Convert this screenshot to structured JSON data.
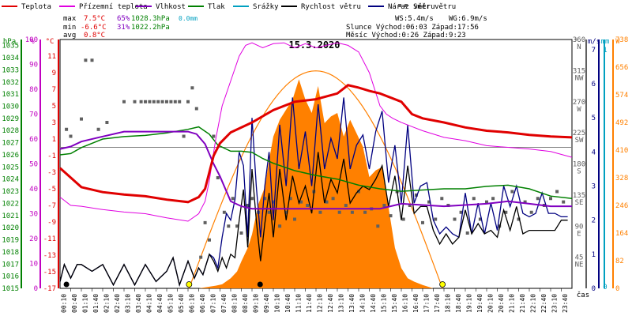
{
  "chart_data": {
    "type": "line",
    "title": "15.3.2020",
    "xlabel": "čas",
    "legend": [
      {
        "name": "Teplota",
        "color": "#e00000"
      },
      {
        "name": "Přízemní teplota",
        "color": "#e000e0"
      },
      {
        "name": "Vlhkost",
        "color": "#8000c0"
      },
      {
        "name": "Tlak",
        "color": "#008000"
      },
      {
        "name": "Srážky",
        "color": "#00a0c0"
      },
      {
        "name": "Rychlost větru",
        "color": "#000000"
      },
      {
        "name": "Náraz větru",
        "color": "#000080"
      },
      {
        "name": "Směr větru",
        "color": "#606060"
      }
    ],
    "stats": {
      "max": {
        "label": "max",
        "temp": "7.5°C",
        "hum": "65%",
        "press": "1028.3hPa",
        "rain": "0.0mm"
      },
      "min": {
        "label": "min",
        "temp": "-6.6°C",
        "hum": "31%",
        "press": "1022.2hPa"
      },
      "avg": {
        "label": "avg",
        "temp": "0.8°C"
      }
    },
    "info": {
      "ws": "WS:5.4m/s",
      "wg": "WG:6.9m/s",
      "sun": "Slunce Východ:06:03  Západ:17:56",
      "moon": "Měsíc  Východ:0:26  Západ:9:23"
    },
    "axes": {
      "hpa_unit": "hPa",
      "pct_unit": "%",
      "degc_unit": "°C",
      "deg_unit": "°",
      "ms_unit": "m/s",
      "mm_unit": "mm",
      "w_unit": "W",
      "hpa_ticks": [
        "1035",
        "1034",
        "1033",
        "1032",
        "1031",
        "1030",
        "1029",
        "1028",
        "1027",
        "1026",
        "1025",
        "1024",
        "1023",
        "1022",
        "1021",
        "1020",
        "1019",
        "1018",
        "1017",
        "1016",
        "1015"
      ],
      "pct_ticks": [
        "100",
        "90",
        "80",
        "70",
        "60",
        "50",
        "40",
        "30",
        "20",
        "10",
        "0"
      ],
      "degc_ticks": [
        "11",
        "9",
        "7",
        "5",
        "3",
        "1",
        "-1",
        "-3",
        "-5",
        "-7",
        "-9",
        "-11",
        "-13",
        "-15",
        "-17"
      ],
      "dir_ticks": [
        "360",
        "N",
        "315",
        "NW",
        "270",
        "W",
        "225",
        "SW",
        "180",
        "S",
        "135",
        "SE",
        "90",
        "E",
        "45",
        "NE",
        "0"
      ],
      "ms_ticks": [
        "7",
        "6",
        "5",
        "4",
        "3",
        "2",
        "1",
        "0"
      ],
      "mm_ticks": [
        "1",
        "0"
      ],
      "w_ticks": [
        "738",
        "656",
        "574",
        "492",
        "410",
        "328",
        "246",
        "164",
        "82",
        "0"
      ],
      "time_ticks": [
        "00:10",
        "00:40",
        "01:10",
        "01:40",
        "02:10",
        "02:40",
        "03:10",
        "03:40",
        "04:10",
        "04:40",
        "05:10",
        "05:40",
        "06:10",
        "06:40",
        "07:10",
        "07:40",
        "08:10",
        "08:40",
        "09:10",
        "09:40",
        "10:10",
        "10:40",
        "11:10",
        "11:40",
        "12:10",
        "12:40",
        "13:10",
        "13:40",
        "14:10",
        "14:40",
        "15:10",
        "15:40",
        "16:10",
        "16:40",
        "17:10",
        "17:40",
        "18:10",
        "18:40",
        "19:10",
        "19:40",
        "20:10",
        "20:40",
        "21:10",
        "21:40",
        "22:10",
        "22:40",
        "23:10",
        "23:40"
      ]
    },
    "ylim": {
      "temp_c": [
        -17,
        13
      ],
      "hum_pct": [
        0,
        100
      ],
      "press_hpa": [
        1015,
        1035.5
      ],
      "dir_deg": [
        0,
        360
      ],
      "wind_ms": [
        0,
        7.3
      ],
      "solar_w": [
        0,
        738
      ]
    },
    "series": {
      "temperature": {
        "name": "Teplota",
        "color": "#e00000",
        "hours": [
          0,
          1,
          2,
          3,
          4,
          5,
          6,
          6.5,
          6.8,
          7,
          7.2,
          7.5,
          8,
          9,
          10,
          11,
          12,
          13,
          13.5,
          14,
          14.5,
          15,
          16,
          16.5,
          17,
          18,
          19,
          20,
          21,
          22,
          23,
          24
        ],
        "values": [
          -2.5,
          -4.8,
          -5.4,
          -5.7,
          -5.9,
          -6.3,
          -6.6,
          -6.0,
          -5.0,
          -3.0,
          -1.0,
          0.5,
          1.8,
          3.0,
          4.5,
          5.5,
          5.8,
          6.5,
          7.5,
          7.2,
          6.8,
          6.5,
          5.5,
          4.0,
          3.5,
          3.0,
          2.4,
          2.0,
          1.8,
          1.5,
          1.3,
          1.2
        ]
      },
      "ground_temperature": {
        "name": "Přízemní teplota",
        "color": "#e000e0",
        "hours": [
          0,
          0.5,
          1,
          2,
          3,
          4,
          5,
          6,
          6.5,
          6.8,
          7,
          7.3,
          7.6,
          8,
          8.4,
          8.7,
          9,
          9.5,
          10,
          10.5,
          11,
          11.5,
          12,
          13,
          13.5,
          14,
          14.5,
          15,
          15.3,
          15.6,
          16,
          16.5,
          17,
          18,
          19,
          20,
          21,
          22,
          23,
          24
        ],
        "values": [
          -6.0,
          -7.0,
          -7.1,
          -7.5,
          -7.8,
          -8.0,
          -8.5,
          -8.9,
          -8.0,
          -6.5,
          -4.0,
          1.0,
          5.0,
          8.0,
          11.0,
          12.3,
          12.6,
          12.0,
          12.5,
          12.6,
          12.0,
          12.5,
          12.0,
          12.6,
          12.3,
          11.5,
          9.0,
          5.0,
          4.0,
          3.5,
          3.0,
          2.5,
          2.0,
          1.2,
          0.8,
          0.2,
          0.0,
          -0.2,
          -0.5,
          -1.2
        ]
      },
      "humidity": {
        "name": "Vlhkost",
        "color": "#8000c0",
        "hours": [
          0,
          0.5,
          1,
          2,
          3,
          4,
          5,
          6,
          6.4,
          6.8,
          7.2,
          7.5,
          8,
          8.5,
          9,
          10,
          12,
          14,
          15,
          16,
          18,
          20,
          21,
          22,
          23,
          24
        ],
        "values": [
          56,
          57,
          59,
          61,
          63,
          63,
          63,
          63,
          62,
          58,
          50,
          45,
          35,
          33,
          32,
          32,
          32,
          32,
          32,
          34,
          33,
          34,
          35,
          34,
          33,
          33
        ]
      },
      "pressure": {
        "name": "Tlak",
        "color": "#008000",
        "hours": [
          0,
          0.5,
          1,
          2,
          3,
          4,
          5,
          6,
          6.5,
          7,
          7.4,
          8,
          8.5,
          9,
          9.5,
          10,
          11,
          12,
          13,
          14,
          15,
          16,
          17,
          18,
          19,
          20,
          21,
          22,
          23,
          24
        ],
        "values": [
          1026.0,
          1026.1,
          1026.6,
          1027.3,
          1027.5,
          1027.6,
          1027.8,
          1028.1,
          1028.3,
          1027.7,
          1026.8,
          1026.3,
          1026.3,
          1026.2,
          1025.7,
          1025.3,
          1024.7,
          1024.3,
          1024.0,
          1023.5,
          1023.2,
          1023.0,
          1023.1,
          1023.2,
          1023.2,
          1023.4,
          1023.5,
          1023.2,
          1022.6,
          1022.4
        ]
      },
      "rain_mm": {
        "name": "Srážky",
        "color": "#00a0c0",
        "total": 0.0
      },
      "wind_speed_hours": [
        0,
        0.2,
        0.5,
        0.8,
        1.0,
        1.5,
        2.0,
        2.5,
        3.0,
        3.5,
        4.0,
        4.5,
        5.0,
        5.3,
        5.6,
        6.0,
        6.3,
        6.5,
        6.7,
        6.9,
        7.0,
        7.2,
        7.4,
        7.6,
        7.8,
        8.0,
        8.2,
        8.4,
        8.6,
        8.8,
        9.0,
        9.2,
        9.4,
        9.6,
        9.8,
        10.0,
        10.3,
        10.6,
        10.9,
        11.2,
        11.5,
        11.8,
        12.1,
        12.4,
        12.7,
        13.0,
        13.3,
        13.6,
        13.9,
        14.2,
        14.5,
        14.8,
        15.1,
        15.4,
        15.7,
        16.0,
        16.3,
        16.6,
        16.9,
        17.2,
        17.5,
        17.8,
        18.1,
        18.4,
        18.7,
        19.0,
        19.3,
        19.6,
        19.9,
        20.2,
        20.5,
        20.8,
        21.1,
        21.4,
        21.7,
        22.0,
        22.3,
        22.6,
        22.9,
        23.2,
        23.5,
        23.8
      ],
      "wind_speed": {
        "name": "Rychlost větru",
        "color": "#000000",
        "values": [
          0.2,
          0.7,
          0.3,
          0.7,
          0.7,
          0.5,
          0.7,
          0.1,
          0.7,
          0.1,
          0.7,
          0.2,
          0.5,
          0.9,
          0.1,
          0.8,
          0.3,
          0.6,
          0.4,
          0.8,
          1.0,
          0.8,
          0.5,
          0.9,
          0.6,
          1.0,
          0.9,
          2.0,
          2.9,
          1.2,
          3.5,
          2.0,
          0.8,
          1.9,
          2.8,
          1.5,
          3.5,
          2.0,
          3.3,
          2.5,
          3.0,
          2.2,
          4.0,
          2.5,
          3.2,
          2.8,
          3.8,
          2.5,
          2.8,
          3.0,
          2.9,
          3.2,
          3.6,
          2.4,
          3.3,
          2.0,
          3.6,
          2.2,
          2.4,
          2.4,
          1.7,
          1.3,
          1.6,
          1.3,
          1.5,
          2.3,
          1.6,
          1.9,
          1.6,
          1.7,
          1.5,
          2.3,
          1.7,
          2.4,
          1.6,
          1.7,
          1.7,
          1.7,
          1.7,
          1.7,
          2.0,
          2.0
        ]
      },
      "wind_gust": {
        "name": "Náraz větru",
        "color": "#000080",
        "values": [
          0.2,
          0.7,
          0.3,
          0.7,
          0.7,
          0.5,
          0.7,
          0.1,
          0.7,
          0.1,
          0.7,
          0.2,
          0.5,
          0.9,
          0.1,
          0.8,
          0.3,
          0.6,
          0.4,
          0.8,
          1.0,
          0.9,
          0.6,
          1.5,
          2.2,
          2.0,
          2.6,
          4.0,
          3.6,
          1.5,
          5.0,
          3.0,
          1.5,
          3.0,
          4.0,
          2.0,
          4.8,
          3.0,
          5.6,
          3.5,
          4.6,
          3.0,
          5.4,
          3.5,
          4.4,
          3.8,
          5.6,
          3.5,
          4.2,
          4.5,
          3.5,
          4.6,
          5.2,
          3.1,
          4.2,
          2.5,
          4.8,
          2.5,
          3.0,
          3.1,
          2.0,
          1.6,
          1.8,
          1.6,
          1.5,
          2.8,
          1.6,
          2.5,
          1.6,
          2.5,
          1.7,
          3.0,
          2.4,
          3.0,
          2.2,
          2.1,
          2.2,
          2.8,
          2.2,
          2.2,
          2.1,
          2.1
        ]
      },
      "solar": {
        "name": "Solar",
        "color": "#ff8000",
        "hours": [
          6.5,
          7.0,
          7.3,
          7.6,
          8.0,
          8.3,
          8.5,
          8.8,
          9.0,
          9.3,
          9.6,
          9.8,
          10.0,
          10.3,
          10.6,
          10.9,
          11.2,
          11.5,
          11.8,
          12.1,
          12.4,
          12.7,
          13.0,
          13.3,
          13.6,
          13.9,
          14.2,
          14.5,
          14.8,
          15.1,
          15.4,
          15.7,
          16.0,
          16.3,
          16.6,
          17.0,
          17.5
        ],
        "values": [
          0,
          5,
          8,
          12,
          30,
          50,
          80,
          120,
          160,
          250,
          300,
          380,
          450,
          500,
          530,
          560,
          620,
          560,
          520,
          600,
          490,
          510,
          520,
          450,
          500,
          460,
          420,
          330,
          350,
          360,
          240,
          120,
          60,
          30,
          20,
          10,
          0
        ]
      },
      "solar_theoretical_max_w": 645,
      "wind_direction_hours": [
        0.3,
        0.5,
        1.0,
        1.2,
        1.5,
        1.8,
        2.2,
        3.0,
        3.5,
        3.8,
        4.0,
        4.2,
        4.4,
        4.6,
        4.8,
        5.0,
        5.2,
        5.4,
        5.6,
        5.8,
        6.0,
        6.2,
        6.4,
        6.6,
        6.8,
        7.0,
        7.2,
        7.4,
        7.7,
        7.9,
        8.1,
        8.3,
        8.5,
        8.8,
        9.0,
        9.3,
        9.6,
        9.8,
        10.0,
        10.3,
        10.6,
        10.8,
        11.0,
        11.3,
        11.6,
        11.9,
        12.2,
        12.5,
        12.8,
        13.1,
        13.4,
        13.7,
        14.0,
        14.3,
        14.6,
        14.9,
        15.2,
        15.5,
        15.8,
        16.1,
        16.4,
        16.7,
        17.0,
        17.3,
        17.6,
        17.9,
        18.2,
        18.5,
        18.8,
        19.1,
        19.4,
        19.7,
        20.0,
        20.3,
        20.6,
        20.9,
        21.2,
        21.5,
        21.8,
        22.1,
        22.4,
        22.7,
        23.0,
        23.3,
        23.6
      ],
      "wind_direction": {
        "name": "Směr větru",
        "color": "#606060",
        "values": [
          230,
          220,
          245,
          330,
          330,
          230,
          240,
          270,
          270,
          270,
          270,
          270,
          270,
          270,
          270,
          270,
          270,
          270,
          270,
          220,
          270,
          290,
          260,
          45,
          95,
          70,
          220,
          160,
          110,
          90,
          130,
          90,
          80,
          120,
          130,
          110,
          130,
          110,
          125,
          90,
          110,
          130,
          100,
          125,
          120,
          140,
          110,
          125,
          130,
          110,
          120,
          110,
          140,
          110,
          115,
          90,
          120,
          105,
          140,
          100,
          120,
          135,
          95,
          125,
          100,
          130,
          120,
          100,
          110,
          80,
          130,
          100,
          125,
          130,
          90,
          110,
          140,
          100,
          125,
          110,
          130,
          120,
          130,
          140,
          125
        ]
      }
    }
  }
}
